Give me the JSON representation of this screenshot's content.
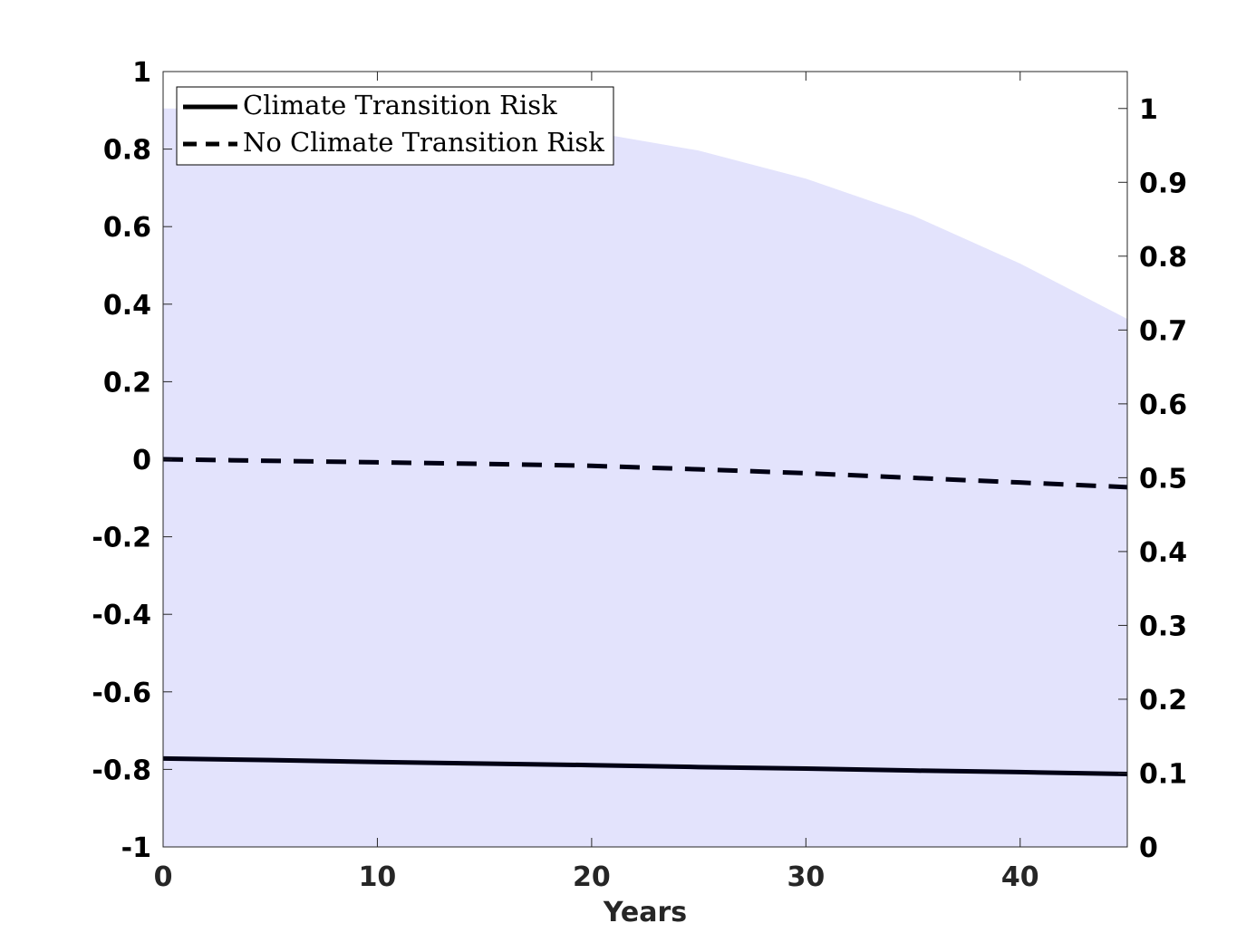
{
  "chart_data": {
    "type": "line",
    "xlabel": "Years",
    "xlim": [
      0,
      45
    ],
    "ylim_left": [
      -1,
      1
    ],
    "ylim_right": [
      0,
      1.05
    ],
    "x_ticks": [
      "0",
      "10",
      "20",
      "30",
      "40"
    ],
    "x_tick_values": [
      0,
      10,
      20,
      30,
      40
    ],
    "y_left_ticks": [
      "-1",
      "-0.8",
      "-0.6",
      "-0.4",
      "-0.2",
      "0",
      "0.2",
      "0.4",
      "0.6",
      "0.8",
      "1"
    ],
    "y_left_tick_values": [
      -1,
      -0.8,
      -0.6,
      -0.4,
      -0.2,
      0,
      0.2,
      0.4,
      0.6,
      0.8,
      1
    ],
    "y_right_ticks": [
      "0",
      "0.1",
      "0.2",
      "0.3",
      "0.4",
      "0.5",
      "0.6",
      "0.7",
      "0.8",
      "0.9",
      "1"
    ],
    "y_right_tick_values": [
      0,
      0.1,
      0.2,
      0.3,
      0.4,
      0.5,
      0.6,
      0.7,
      0.8,
      0.9,
      1
    ],
    "grid": false,
    "legend_position": "top-left",
    "shaded_area": {
      "axis": "right",
      "color": "#e3e3fc",
      "x": [
        0,
        5,
        10,
        15,
        20,
        25,
        30,
        35,
        40,
        45
      ],
      "y": [
        1.0,
        0.999,
        0.995,
        0.985,
        0.968,
        0.943,
        0.905,
        0.855,
        0.79,
        0.715
      ]
    },
    "series": [
      {
        "name": "Climate Transition Risk",
        "style": "solid",
        "axis": "left",
        "color": "#000014",
        "x": [
          0,
          5,
          10,
          15,
          20,
          25,
          30,
          35,
          40,
          45
        ],
        "y": [
          -0.772,
          -0.776,
          -0.781,
          -0.785,
          -0.789,
          -0.794,
          -0.798,
          -0.803,
          -0.807,
          -0.812
        ]
      },
      {
        "name": "No Climate Transition Risk",
        "style": "dashed",
        "axis": "left",
        "color": "#000014",
        "x": [
          0,
          5,
          10,
          15,
          20,
          25,
          30,
          35,
          40,
          45
        ],
        "y": [
          0.0,
          -0.004,
          -0.008,
          -0.012,
          -0.017,
          -0.026,
          -0.036,
          -0.048,
          -0.06,
          -0.072
        ]
      }
    ],
    "legend": [
      "Climate Transition Risk",
      "No Climate Transition Risk"
    ]
  }
}
